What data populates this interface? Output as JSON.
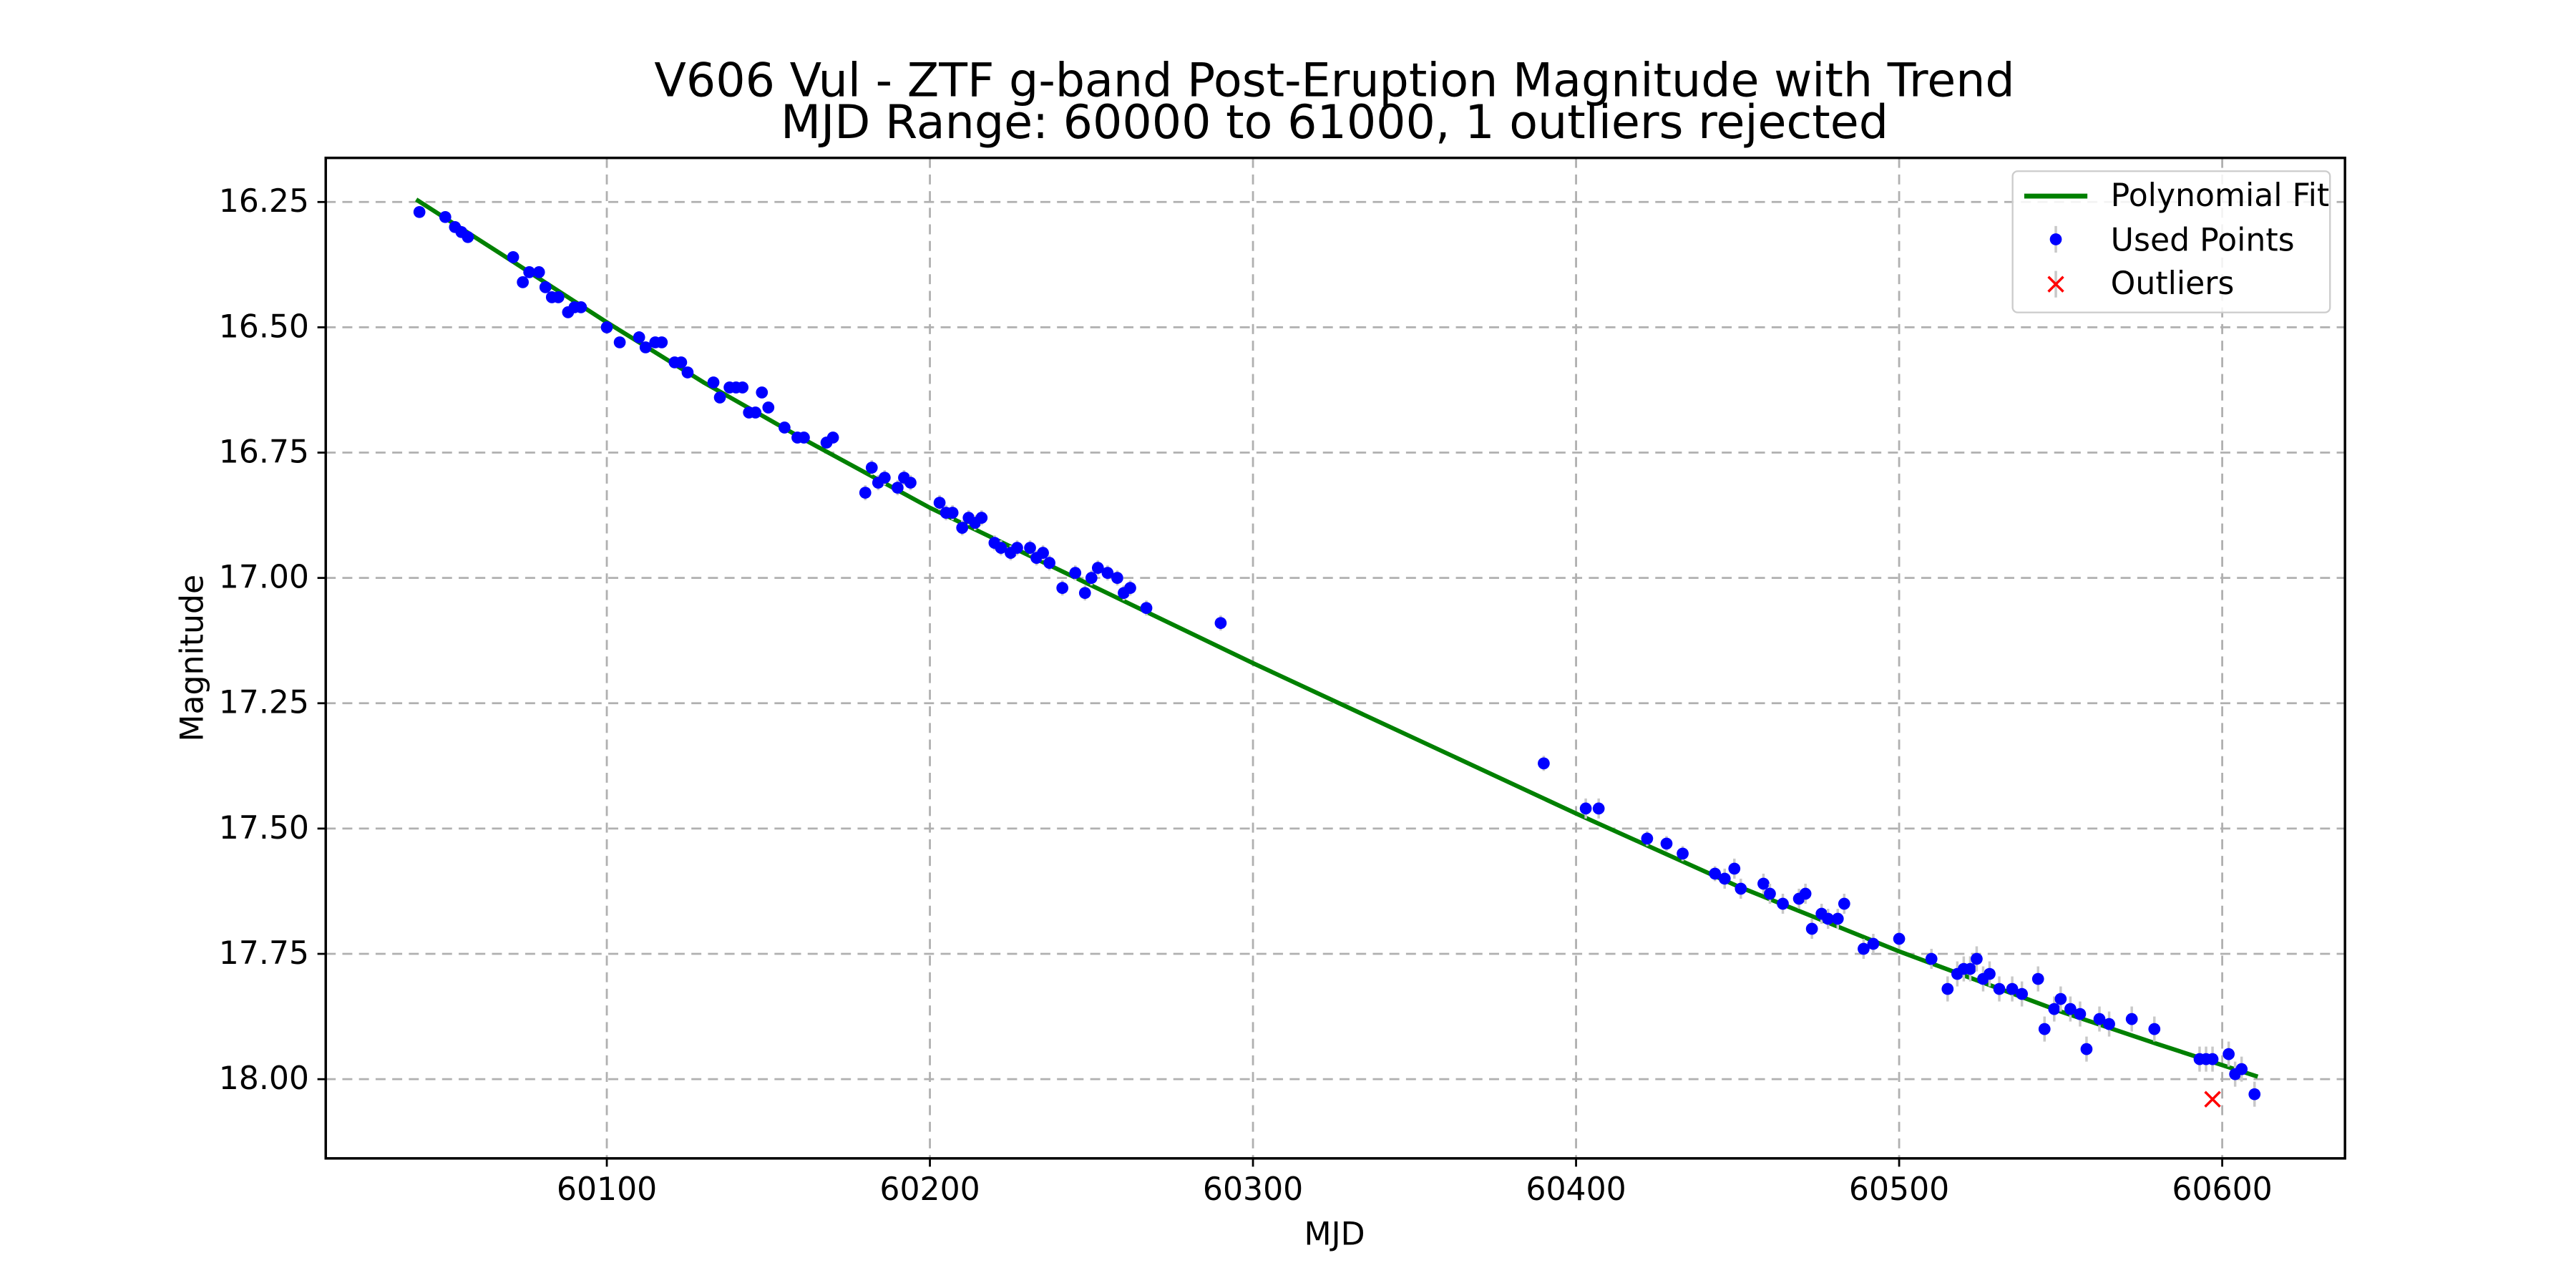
{
  "chart_data": {
    "type": "scatter",
    "title": "V606 Vul - ZTF g-band Post-Eruption Magnitude with Trend",
    "subtitle": "MJD Range: 60000 to 61000, 1 outliers rejected",
    "xlabel": "MJD",
    "ylabel": "Magnitude",
    "xlim": [
      60013,
      60638
    ],
    "ylim": [
      18.158,
      16.162
    ],
    "y_inverted": true,
    "grid": true,
    "legend_position": "top-right",
    "x_ticks": [
      60100,
      60200,
      60300,
      60400,
      60500,
      60600
    ],
    "x_tick_labels": [
      "60100",
      "60200",
      "60300",
      "60400",
      "60500",
      "60600"
    ],
    "y_ticks": [
      16.25,
      16.5,
      16.75,
      17.0,
      17.25,
      17.5,
      17.75,
      18.0
    ],
    "y_tick_labels": [
      "16.25",
      "16.50",
      "16.75",
      "17.00",
      "17.25",
      "17.50",
      "17.75",
      "18.00"
    ],
    "colors": {
      "fit": "#008000",
      "used": "#0000ff",
      "outlier": "#ff0000",
      "errorbar": "#c8c8c8"
    },
    "series": [
      {
        "name": "Polynomial Fit",
        "kind": "line",
        "x": [
          60041,
          60070,
          60100,
          60130,
          60160,
          60200,
          60250,
          60300,
          60350,
          60400,
          60450,
          60500,
          60550,
          60580,
          60611
        ],
        "y": [
          16.245,
          16.365,
          16.49,
          16.61,
          16.72,
          16.86,
          17.015,
          17.17,
          17.32,
          17.47,
          17.615,
          17.745,
          17.865,
          17.93,
          17.995
        ]
      },
      {
        "name": "Used Points",
        "kind": "scatter",
        "x": [
          60042,
          60050,
          60053,
          60055,
          60057,
          60071,
          60074,
          60076,
          60079,
          60081,
          60083,
          60085,
          60088,
          60090,
          60092,
          60100,
          60104,
          60110,
          60112,
          60115,
          60117,
          60121,
          60123,
          60125,
          60133,
          60135,
          60138,
          60140,
          60142,
          60144,
          60146,
          60148,
          60150,
          60155,
          60159,
          60161,
          60168,
          60170,
          60180,
          60182,
          60184,
          60186,
          60190,
          60192,
          60194,
          60203,
          60205,
          60207,
          60210,
          60212,
          60214,
          60216,
          60220,
          60222,
          60225,
          60227,
          60231,
          60233,
          60235,
          60237,
          60241,
          60245,
          60248,
          60250,
          60252,
          60255,
          60258,
          60260,
          60262,
          60267,
          60290,
          60390,
          60403,
          60407,
          60422,
          60428,
          60433,
          60443,
          60446,
          60449,
          60451,
          60458,
          60460,
          60464,
          60469,
          60471,
          60473,
          60476,
          60478,
          60481,
          60483,
          60489,
          60492,
          60500,
          60510,
          60515,
          60518,
          60520,
          60522,
          60524,
          60526,
          60528,
          60531,
          60535,
          60538,
          60543,
          60545,
          60548,
          60550,
          60553,
          60556,
          60558,
          60562,
          60565,
          60572,
          60579,
          60593,
          60595,
          60597,
          60602,
          60604,
          60606,
          60610
        ],
        "y": [
          16.27,
          16.28,
          16.3,
          16.31,
          16.32,
          16.36,
          16.41,
          16.39,
          16.39,
          16.42,
          16.44,
          16.44,
          16.47,
          16.46,
          16.46,
          16.5,
          16.53,
          16.52,
          16.54,
          16.53,
          16.53,
          16.57,
          16.57,
          16.59,
          16.61,
          16.64,
          16.62,
          16.62,
          16.62,
          16.67,
          16.67,
          16.63,
          16.66,
          16.7,
          16.72,
          16.72,
          16.73,
          16.72,
          16.83,
          16.78,
          16.81,
          16.8,
          16.82,
          16.8,
          16.81,
          16.85,
          16.87,
          16.87,
          16.9,
          16.88,
          16.89,
          16.88,
          16.93,
          16.94,
          16.95,
          16.94,
          16.94,
          16.96,
          16.95,
          16.97,
          17.02,
          16.99,
          17.03,
          17.0,
          16.98,
          16.99,
          17.0,
          17.03,
          17.02,
          17.06,
          17.09,
          17.37,
          17.46,
          17.46,
          17.52,
          17.53,
          17.55,
          17.59,
          17.6,
          17.58,
          17.62,
          17.61,
          17.63,
          17.65,
          17.64,
          17.63,
          17.7,
          17.67,
          17.68,
          17.68,
          17.65,
          17.74,
          17.73,
          17.72,
          17.76,
          17.82,
          17.79,
          17.78,
          17.78,
          17.76,
          17.8,
          17.79,
          17.82,
          17.82,
          17.83,
          17.8,
          17.9,
          17.86,
          17.84,
          17.86,
          17.87,
          17.94,
          17.88,
          17.89,
          17.88,
          17.9,
          17.96,
          17.96,
          17.96,
          17.95,
          17.99,
          17.98,
          18.03
        ],
        "errors": [
          0.01,
          0.01,
          0.01,
          0.01,
          0.01,
          0.01,
          0.01,
          0.01,
          0.01,
          0.01,
          0.01,
          0.01,
          0.01,
          0.01,
          0.01,
          0.01,
          0.01,
          0.01,
          0.01,
          0.01,
          0.01,
          0.01,
          0.01,
          0.01,
          0.01,
          0.01,
          0.01,
          0.01,
          0.01,
          0.01,
          0.01,
          0.01,
          0.01,
          0.01,
          0.01,
          0.01,
          0.01,
          0.01,
          0.015,
          0.015,
          0.015,
          0.015,
          0.015,
          0.015,
          0.015,
          0.015,
          0.015,
          0.015,
          0.015,
          0.015,
          0.015,
          0.015,
          0.015,
          0.015,
          0.015,
          0.015,
          0.015,
          0.015,
          0.015,
          0.015,
          0.015,
          0.015,
          0.015,
          0.015,
          0.015,
          0.015,
          0.015,
          0.015,
          0.015,
          0.015,
          0.015,
          0.015,
          0.02,
          0.02,
          0.015,
          0.015,
          0.015,
          0.015,
          0.02,
          0.02,
          0.02,
          0.02,
          0.02,
          0.02,
          0.02,
          0.02,
          0.02,
          0.02,
          0.02,
          0.02,
          0.02,
          0.02,
          0.02,
          0.02,
          0.02,
          0.025,
          0.025,
          0.025,
          0.025,
          0.025,
          0.025,
          0.025,
          0.025,
          0.025,
          0.025,
          0.025,
          0.025,
          0.025,
          0.025,
          0.025,
          0.025,
          0.025,
          0.025,
          0.025,
          0.025,
          0.025,
          0.025,
          0.025,
          0.025,
          0.025,
          0.025,
          0.025,
          0.025
        ]
      },
      {
        "name": "Outliers",
        "kind": "scatter-x",
        "x": [
          60597
        ],
        "y": [
          18.04
        ]
      }
    ],
    "legend": [
      "Polynomial Fit",
      "Used Points",
      "Outliers"
    ]
  }
}
